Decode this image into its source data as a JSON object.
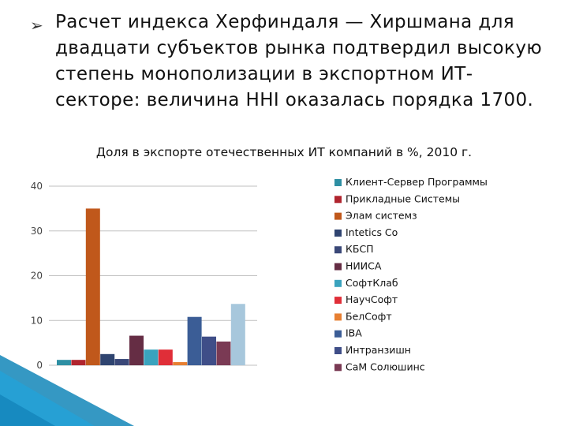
{
  "slide": {
    "bullet_text": "Расчет индекса Херфиндаля — Хиршмана для двадцати субъектов рынка подтвердил высокую степень монополизации в экспортном ИТ-секторе: величина HHI оказалась порядка 1700."
  },
  "chart_data": {
    "type": "bar",
    "title": "Доля в экспорте отечественных ИТ компаний в %, 2010 г.",
    "xlabel": "",
    "ylabel": "",
    "ylim": [
      0,
      40
    ],
    "yticks": [
      "40",
      "30",
      "20",
      "10",
      "0"
    ],
    "grid": true,
    "legend_position": "right",
    "series": [
      {
        "name": "Клиент-Сервер Программы",
        "value": 1.2,
        "color": "#2e8fa3"
      },
      {
        "name": "Прикладные Системы",
        "value": 1.2,
        "color": "#b0242e"
      },
      {
        "name": "Элам системз",
        "value": 35,
        "color": "#c0581b"
      },
      {
        "name": "Intetics Co",
        "value": 2.5,
        "color": "#2f4470"
      },
      {
        "name": "КБСП",
        "value": 1.4,
        "color": "#3a4878"
      },
      {
        "name": "НИИСА",
        "value": 6.6,
        "color": "#652d44"
      },
      {
        "name": "СофтКлаб",
        "value": 3.5,
        "color": "#3aa3be"
      },
      {
        "name": "НаучСофт",
        "value": 3.5,
        "color": "#e02e38"
      },
      {
        "name": "БелСофт",
        "value": 0.7,
        "color": "#e77f32"
      },
      {
        "name": "IBA",
        "value": 10.8,
        "color": "#3b5d96"
      },
      {
        "name": "Интранзишн",
        "value": 6.4,
        "color": "#3f4e88"
      },
      {
        "name": "СаМ Солюшинс",
        "value": 5.3,
        "color": "#7a3a54"
      },
      {
        "name": "",
        "value": 13.7,
        "color": "#a7c7dc"
      }
    ]
  }
}
